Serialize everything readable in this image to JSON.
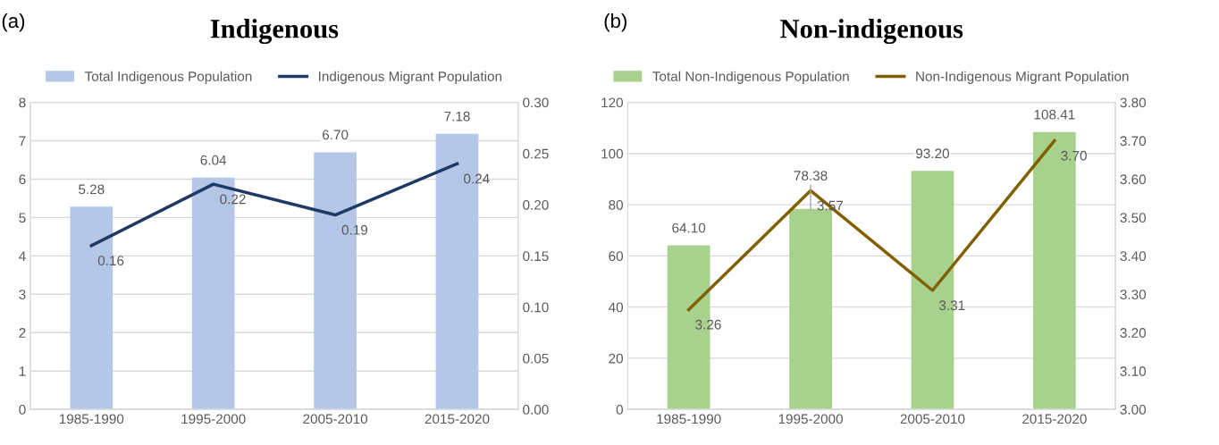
{
  "chart_data": [
    {
      "type": "bar",
      "title": "Indigenous",
      "annotations": [
        "(a)"
      ],
      "categories": [
        "1985-1990",
        "1995-2000",
        "2005-2010",
        "2015-2020"
      ],
      "series": [
        {
          "name": "Total Indigenous Population",
          "color": "#b4c7e7",
          "values": [
            5.28,
            6.04,
            6.7,
            7.18
          ],
          "value_labels": [
            "5.28",
            "6.04",
            "6.70",
            "7.18"
          ]
        },
        {
          "name": "Indigenous Migrant Population",
          "type": "line",
          "axis": "y2",
          "color": "#203864",
          "values": [
            0.16,
            0.22,
            0.19,
            0.24
          ],
          "value_labels": [
            "0.16",
            "0.22",
            "0.19",
            "0.24"
          ]
        }
      ],
      "ylim": [
        0,
        8
      ],
      "yticks": [
        0,
        1,
        2,
        3,
        4,
        5,
        6,
        7,
        8
      ],
      "y2lim": [
        0,
        0.3
      ],
      "y2ticks": [
        {
          "value": 0,
          "label": "0.00"
        },
        {
          "value": 0.05,
          "label": "0.05"
        },
        {
          "value": 0.1,
          "label": "0.10"
        },
        {
          "value": 0.15,
          "label": "0.15"
        },
        {
          "value": 0.2,
          "label": "0.20"
        },
        {
          "value": 0.25,
          "label": "0.25"
        },
        {
          "value": 0.3,
          "label": "0.30"
        }
      ],
      "grid": "y",
      "legend": "top",
      "marker": "none",
      "line_style": "solid"
    },
    {
      "type": "bar",
      "title": "Non-indigenous",
      "annotations": [
        "(b)"
      ],
      "categories": [
        "1985-1990",
        "1995-2000",
        "2005-2010",
        "2015-2020"
      ],
      "series": [
        {
          "name": "Total Non-Indigenous Population",
          "color": "#a9d18e",
          "values": [
            64.1,
            78.38,
            93.2,
            108.41
          ],
          "value_labels": [
            "64.10",
            "78.38",
            "93.20",
            "108.41"
          ]
        },
        {
          "name": "Non-Indigenous Migrant Population",
          "type": "line",
          "axis": "y2",
          "color": "#806000",
          "values": [
            3.26,
            3.57,
            3.31,
            3.7
          ],
          "value_labels": [
            "3.26",
            "3.57",
            "3.31",
            "3.70"
          ]
        }
      ],
      "ylim": [
        0,
        120
      ],
      "yticks": [
        0,
        20,
        40,
        60,
        80,
        100,
        120
      ],
      "y2lim": [
        3.0,
        3.8
      ],
      "y2ticks": [
        {
          "value": 3.0,
          "label": "3.00"
        },
        {
          "value": 3.1,
          "label": "3.10"
        },
        {
          "value": 3.2,
          "label": "3.20"
        },
        {
          "value": 3.3,
          "label": "3.30"
        },
        {
          "value": 3.4,
          "label": "3.40"
        },
        {
          "value": 3.5,
          "label": "3.50"
        },
        {
          "value": 3.6,
          "label": "3.60"
        },
        {
          "value": 3.7,
          "label": "3.70"
        },
        {
          "value": 3.8,
          "label": "3.80"
        }
      ],
      "grid": "y",
      "legend": "top",
      "marker": "none",
      "line_style": "solid"
    }
  ]
}
